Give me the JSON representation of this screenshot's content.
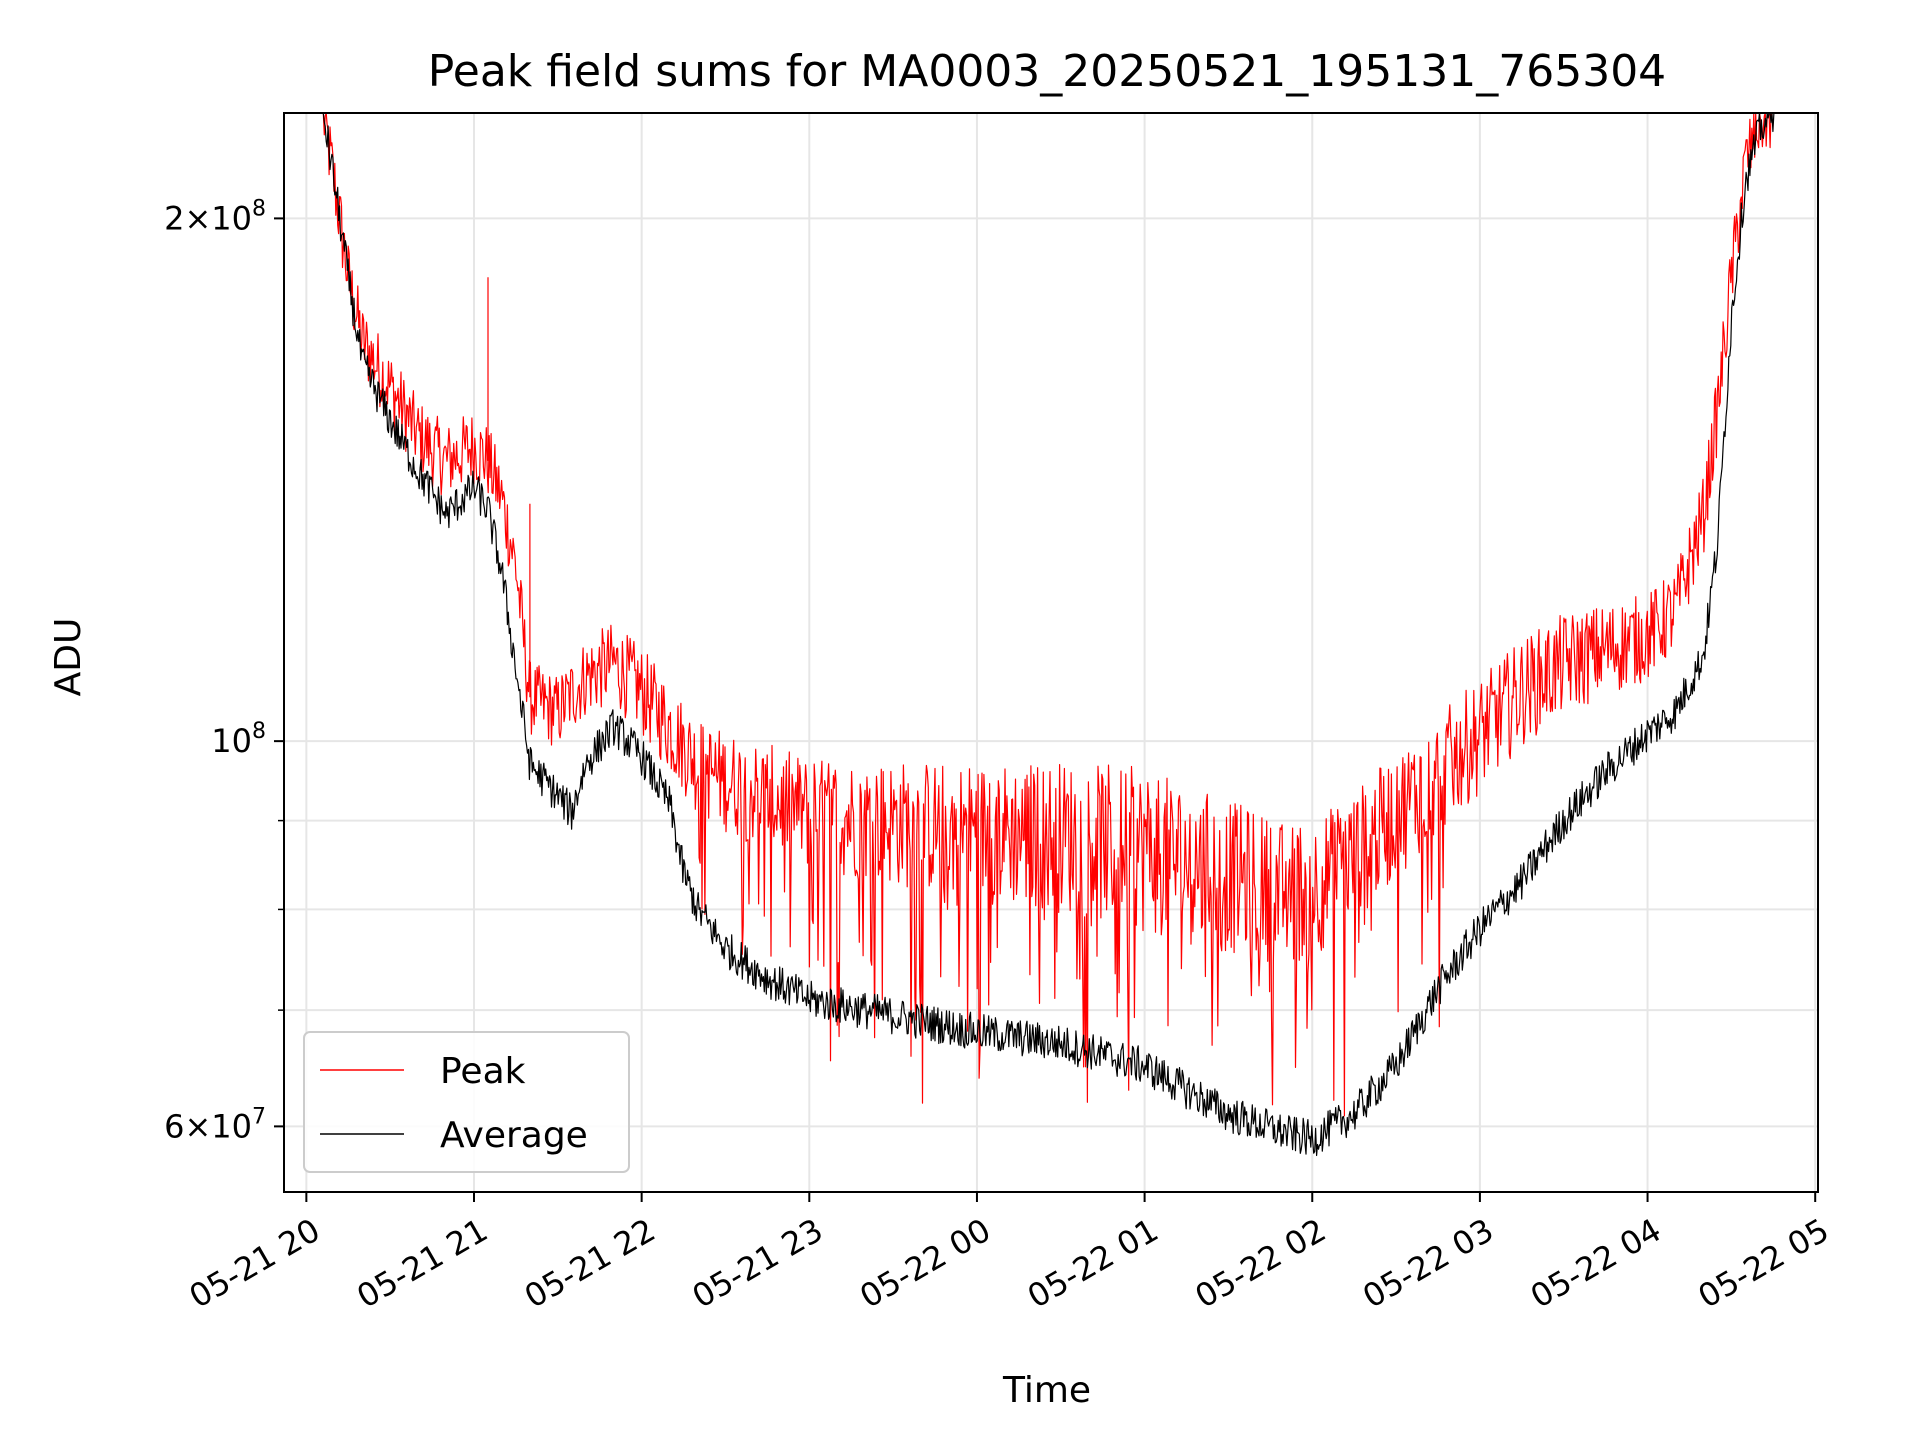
{
  "chart_data": {
    "type": "line",
    "title": "Peak field sums for MA0003_20250521_195131_765304",
    "xlabel": "Time",
    "ylabel": "ADU",
    "y_scale": "log",
    "ylim": [
      55000000,
      230000000
    ],
    "xlim": [
      "2025-05-21 19:52",
      "2025-05-22 05:01"
    ],
    "grid": true,
    "legend_position": "lower-left",
    "x_ticks": [
      "05-21 20",
      "05-21 21",
      "05-21 22",
      "05-21 23",
      "05-22 00",
      "05-22 01",
      "05-22 02",
      "05-22 03",
      "05-22 04",
      "05-22 05"
    ],
    "x_tick_times": [
      "2025-05-21 20:00",
      "2025-05-21 21:00",
      "2025-05-21 22:00",
      "2025-05-21 23:00",
      "2025-05-22 00:00",
      "2025-05-22 01:00",
      "2025-05-22 02:00",
      "2025-05-22 03:00",
      "2025-05-22 04:00",
      "2025-05-22 05:00"
    ],
    "y_ticks_major": [
      {
        "value": 60000000,
        "mantissa": "6",
        "exponent": "7"
      },
      {
        "value": 100000000,
        "mantissa": "",
        "exponent": "8"
      },
      {
        "value": 200000000,
        "mantissa": "2",
        "exponent": "8"
      }
    ],
    "y_ticks_minor": [
      70000000,
      80000000,
      90000000
    ],
    "series": [
      {
        "name": "Peak",
        "color": "#ff0000",
        "x": [
          "2025-05-21 19:52",
          "2025-05-21 20:06",
          "2025-05-21 20:10",
          "2025-05-21 20:15",
          "2025-05-21 20:20",
          "2025-05-21 20:30",
          "2025-05-21 20:40",
          "2025-05-21 20:50",
          "2025-05-21 21:00",
          "2025-05-21 21:05",
          "2025-05-21 21:10",
          "2025-05-21 21:15",
          "2025-05-21 21:20",
          "2025-05-21 21:30",
          "2025-05-21 21:40",
          "2025-05-21 21:50",
          "2025-05-21 22:00",
          "2025-05-21 22:10",
          "2025-05-21 22:20",
          "2025-05-21 22:30",
          "2025-05-21 22:45",
          "2025-05-21 23:00",
          "2025-05-21 23:30",
          "2025-05-22 00:00",
          "2025-05-22 00:30",
          "2025-05-22 01:00",
          "2025-05-22 01:30",
          "2025-05-22 01:50",
          "2025-05-22 02:00",
          "2025-05-22 02:15",
          "2025-05-22 02:30",
          "2025-05-22 02:45",
          "2025-05-22 03:00",
          "2025-05-22 03:15",
          "2025-05-22 03:30",
          "2025-05-22 03:45",
          "2025-05-22 04:00",
          "2025-05-22 04:10",
          "2025-05-22 04:20",
          "2025-05-22 04:25",
          "2025-05-22 04:30",
          "2025-05-22 04:35",
          "2025-05-22 04:40",
          "2025-05-22 04:45",
          "2025-05-22 05:01"
        ],
        "y": [
          230000000,
          230000000,
          210000000,
          185000000,
          170000000,
          160000000,
          150000000,
          145000000,
          148000000,
          145000000,
          138000000,
          126000000,
          106000000,
          104000000,
          109000000,
          111000000,
          107000000,
          102000000,
          97000000,
          95000000,
          93000000,
          91000000,
          90000000,
          89000000,
          88500000,
          87000000,
          84000000,
          82000000,
          82500000,
          86000000,
          91000000,
          96000000,
          101000000,
          107000000,
          111000000,
          113000000,
          115000000,
          119000000,
          135000000,
          155000000,
          185000000,
          215000000,
          228000000,
          230000000,
          230000000
        ],
        "spikes": [
          {
            "x": "2025-05-21 21:05",
            "y": 185000000
          },
          {
            "x": "2025-05-21 21:20",
            "y": 137000000
          }
        ]
      },
      {
        "name": "Average",
        "color": "#000000",
        "x": [
          "2025-05-21 19:52",
          "2025-05-21 20:06",
          "2025-05-21 20:10",
          "2025-05-21 20:15",
          "2025-05-21 20:20",
          "2025-05-21 20:30",
          "2025-05-21 20:40",
          "2025-05-21 20:50",
          "2025-05-21 21:00",
          "2025-05-21 21:05",
          "2025-05-21 21:10",
          "2025-05-21 21:15",
          "2025-05-21 21:20",
          "2025-05-21 21:30",
          "2025-05-21 21:35",
          "2025-05-21 21:40",
          "2025-05-21 21:50",
          "2025-05-21 22:00",
          "2025-05-21 22:10",
          "2025-05-21 22:15",
          "2025-05-21 22:20",
          "2025-05-21 22:30",
          "2025-05-21 22:45",
          "2025-05-21 23:00",
          "2025-05-21 23:30",
          "2025-05-22 00:00",
          "2025-05-22 00:30",
          "2025-05-22 01:00",
          "2025-05-22 01:30",
          "2025-05-22 01:50",
          "2025-05-22 02:00",
          "2025-05-22 02:15",
          "2025-05-22 02:30",
          "2025-05-22 02:45",
          "2025-05-22 03:00",
          "2025-05-22 03:15",
          "2025-05-22 03:30",
          "2025-05-22 03:45",
          "2025-05-22 04:00",
          "2025-05-22 04:10",
          "2025-05-22 04:20",
          "2025-05-22 04:25",
          "2025-05-22 04:30",
          "2025-05-22 04:35",
          "2025-05-22 04:40",
          "2025-05-22 04:45",
          "2025-05-22 05:01"
        ],
        "y": [
          230000000,
          230000000,
          210000000,
          185000000,
          165000000,
          153000000,
          143000000,
          135000000,
          140000000,
          136000000,
          125000000,
          110000000,
          97000000,
          93000000,
          91000000,
          97000000,
          102000000,
          98000000,
          92000000,
          84000000,
          80000000,
          76000000,
          73000000,
          71000000,
          69500000,
          68000000,
          67000000,
          65000000,
          61000000,
          59500000,
          59000000,
          61000000,
          65000000,
          72000000,
          78000000,
          83000000,
          90000000,
          96000000,
          101000000,
          104000000,
          112000000,
          130000000,
          175000000,
          210000000,
          225000000,
          230000000,
          230000000
        ]
      }
    ],
    "legend": [
      {
        "label": "Peak",
        "color": "#ff0000"
      },
      {
        "label": "Average",
        "color": "#000000"
      }
    ]
  }
}
